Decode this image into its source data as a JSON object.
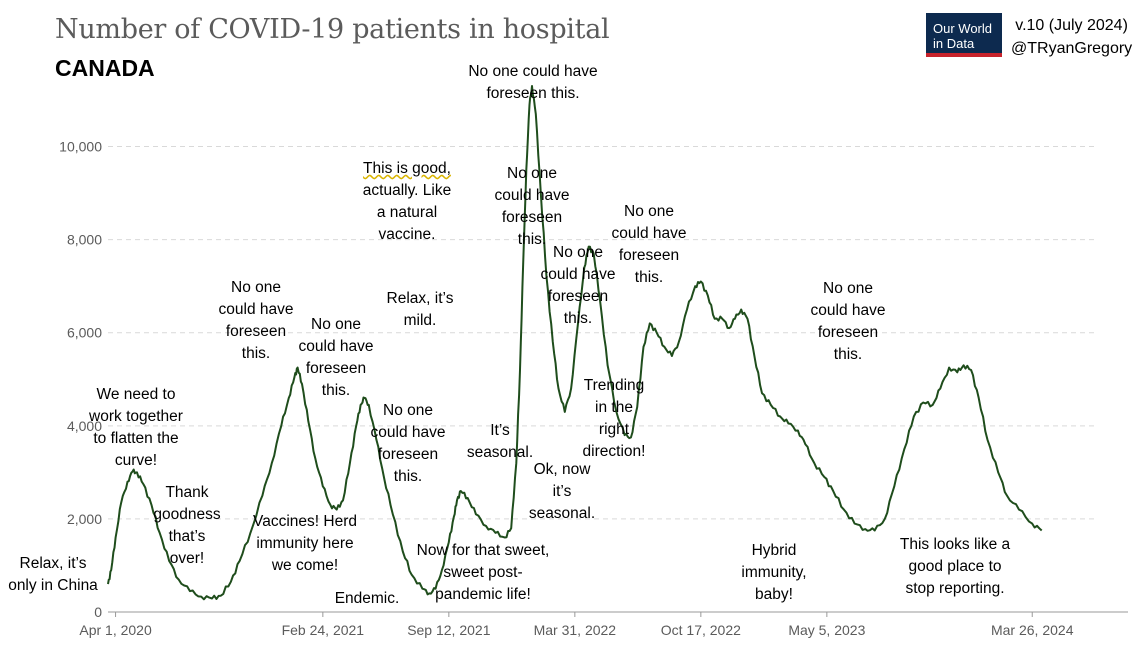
{
  "header": {
    "title": "Number of COVID-19 patients in hospital",
    "subtitle": "CANADA",
    "logo_line1": "Our World",
    "logo_line2": "in Data",
    "version": "v.10 (July 2024)",
    "author": "@TRyanGregory"
  },
  "colors": {
    "line": "#1f4d1c",
    "grid": "#d9d9d9",
    "axis_text": "#5b5b5b",
    "logo_bg": "#0d2a4f",
    "logo_accent": "#c8232c"
  },
  "chart_data": {
    "type": "line",
    "title": "Number of COVID-19 patients in hospital",
    "subtitle": "CANADA",
    "ylim": [
      0,
      11000
    ],
    "yticks": [
      0,
      2000,
      4000,
      6000,
      8000,
      10000
    ],
    "ytick_labels": [
      "0",
      "2,000",
      "4,000",
      "6,000",
      "8,000",
      "10,000"
    ],
    "xlim": [
      "2020-03-20",
      "2024-08-25"
    ],
    "xticks": [
      "2020-04-01",
      "2021-02-24",
      "2021-09-12",
      "2022-03-31",
      "2022-10-17",
      "2023-05-05",
      "2024-03-26"
    ],
    "xtick_labels": [
      "Apr 1, 2020",
      "Feb 24, 2021",
      "Sep 12, 2021",
      "Mar 31, 2022",
      "Oct 17, 2022",
      "May 5, 2023",
      "Mar 26, 2024"
    ],
    "grid": "horizontal dashed",
    "series": [
      {
        "points": [
          [
            "2020-03-20",
            600
          ],
          [
            "2020-03-25",
            900
          ],
          [
            "2020-04-01",
            1600
          ],
          [
            "2020-04-10",
            2350
          ],
          [
            "2020-04-20",
            2800
          ],
          [
            "2020-04-28",
            3020
          ],
          [
            "2020-05-05",
            3000
          ],
          [
            "2020-05-15",
            2750
          ],
          [
            "2020-05-28",
            2300
          ],
          [
            "2020-06-10",
            1700
          ],
          [
            "2020-06-25",
            1100
          ],
          [
            "2020-07-10",
            700
          ],
          [
            "2020-07-28",
            450
          ],
          [
            "2020-08-15",
            330
          ],
          [
            "2020-09-01",
            290
          ],
          [
            "2020-09-15",
            350
          ],
          [
            "2020-10-01",
            650
          ],
          [
            "2020-10-15",
            1100
          ],
          [
            "2020-11-01",
            1700
          ],
          [
            "2020-11-20",
            2500
          ],
          [
            "2020-12-05",
            3200
          ],
          [
            "2020-12-20",
            4000
          ],
          [
            "2021-01-01",
            4600
          ],
          [
            "2021-01-10",
            5050
          ],
          [
            "2021-01-15",
            5250
          ],
          [
            "2021-01-22",
            4900
          ],
          [
            "2021-02-01",
            4100
          ],
          [
            "2021-02-12",
            3300
          ],
          [
            "2021-02-24",
            2700
          ],
          [
            "2021-03-08",
            2300
          ],
          [
            "2021-03-18",
            2200
          ],
          [
            "2021-03-28",
            2400
          ],
          [
            "2021-04-08",
            3200
          ],
          [
            "2021-04-18",
            4000
          ],
          [
            "2021-04-25",
            4450
          ],
          [
            "2021-05-01",
            4600
          ],
          [
            "2021-05-08",
            4450
          ],
          [
            "2021-05-20",
            3700
          ],
          [
            "2021-06-01",
            2900
          ],
          [
            "2021-06-15",
            2100
          ],
          [
            "2021-07-01",
            1300
          ],
          [
            "2021-07-15",
            800
          ],
          [
            "2021-08-01",
            500
          ],
          [
            "2021-08-12",
            400
          ],
          [
            "2021-08-22",
            500
          ],
          [
            "2021-09-01",
            900
          ],
          [
            "2021-09-12",
            1500
          ],
          [
            "2021-09-20",
            2050
          ],
          [
            "2021-09-25",
            2400
          ],
          [
            "2021-10-01",
            2600
          ],
          [
            "2021-10-12",
            2450
          ],
          [
            "2021-10-25",
            2100
          ],
          [
            "2021-11-10",
            1850
          ],
          [
            "2021-11-25",
            1700
          ],
          [
            "2021-12-10",
            1600
          ],
          [
            "2021-12-20",
            1800
          ],
          [
            "2021-12-28",
            3200
          ],
          [
            "2022-01-03",
            5200
          ],
          [
            "2022-01-08",
            7500
          ],
          [
            "2022-01-13",
            9500
          ],
          [
            "2022-01-18",
            10900
          ],
          [
            "2022-01-22",
            11300
          ],
          [
            "2022-01-28",
            10700
          ],
          [
            "2022-02-05",
            9000
          ],
          [
            "2022-02-14",
            7200
          ],
          [
            "2022-02-24",
            5800
          ],
          [
            "2022-03-05",
            4800
          ],
          [
            "2022-03-15",
            4300
          ],
          [
            "2022-03-25",
            4800
          ],
          [
            "2022-04-05",
            6200
          ],
          [
            "2022-04-15",
            7400
          ],
          [
            "2022-04-22",
            7850
          ],
          [
            "2022-04-30",
            7700
          ],
          [
            "2022-05-10",
            6700
          ],
          [
            "2022-05-22",
            5300
          ],
          [
            "2022-06-05",
            4300
          ],
          [
            "2022-06-18",
            3800
          ],
          [
            "2022-06-28",
            3750
          ],
          [
            "2022-07-08",
            4400
          ],
          [
            "2022-07-18",
            5700
          ],
          [
            "2022-07-28",
            6200
          ],
          [
            "2022-08-08",
            6000
          ],
          [
            "2022-08-20",
            5700
          ],
          [
            "2022-09-01",
            5500
          ],
          [
            "2022-09-12",
            5800
          ],
          [
            "2022-09-25",
            6500
          ],
          [
            "2022-10-08",
            7000
          ],
          [
            "2022-10-17",
            7100
          ],
          [
            "2022-10-28",
            6800
          ],
          [
            "2022-11-08",
            6300
          ],
          [
            "2022-11-20",
            6300
          ],
          [
            "2022-12-01",
            6100
          ],
          [
            "2022-12-10",
            6300
          ],
          [
            "2022-12-20",
            6500
          ],
          [
            "2022-12-30",
            6300
          ],
          [
            "2023-01-10",
            5500
          ],
          [
            "2023-01-22",
            4700
          ],
          [
            "2023-02-05",
            4450
          ],
          [
            "2023-02-20",
            4200
          ],
          [
            "2023-03-05",
            4050
          ],
          [
            "2023-03-20",
            3900
          ],
          [
            "2023-04-01",
            3600
          ],
          [
            "2023-04-15",
            3200
          ],
          [
            "2023-05-01",
            2900
          ],
          [
            "2023-05-15",
            2600
          ],
          [
            "2023-06-01",
            2200
          ],
          [
            "2023-06-18",
            1900
          ],
          [
            "2023-07-05",
            1780
          ],
          [
            "2023-07-20",
            1750
          ],
          [
            "2023-08-05",
            2000
          ],
          [
            "2023-08-20",
            2700
          ],
          [
            "2023-09-05",
            3500
          ],
          [
            "2023-09-20",
            4200
          ],
          [
            "2023-10-05",
            4500
          ],
          [
            "2023-10-20",
            4450
          ],
          [
            "2023-11-01",
            4800
          ],
          [
            "2023-11-15",
            5250
          ],
          [
            "2023-11-28",
            5150
          ],
          [
            "2023-12-08",
            5300
          ],
          [
            "2023-12-20",
            5200
          ],
          [
            "2024-01-01",
            4600
          ],
          [
            "2024-01-15",
            3700
          ],
          [
            "2024-02-01",
            3000
          ],
          [
            "2024-02-15",
            2500
          ],
          [
            "2024-03-05",
            2200
          ],
          [
            "2024-03-26",
            1900
          ],
          [
            "2024-04-10",
            1750
          ]
        ]
      }
    ]
  },
  "annotations": [
    {
      "text": "Relax, it’s\nonly in China"
    },
    {
      "text": "We need to\nwork together\nto flatten the\ncurve!"
    },
    {
      "text": "Thank\ngoodness\nthat’s\nover!"
    },
    {
      "text": "No one\ncould have\nforeseen\nthis."
    },
    {
      "text": "No one\ncould have\nforeseen\nthis."
    },
    {
      "text": "Vaccines! Herd\nimmunity here\nwe come!"
    },
    {
      "text": "Endemic."
    },
    {
      "text": "No one\ncould have\nforeseen\nthis."
    },
    {
      "text": "Relax, it’s\nmild."
    },
    {
      "text": "This is good,",
      "line2": "actually. Like\na natural\nvaccine."
    },
    {
      "text": "No one could have\nforeseen this."
    },
    {
      "text": "Now for that sweet,\nsweet post-\npandemic life!"
    },
    {
      "text": "It’s\nseasonal."
    },
    {
      "text": "No one\ncould have\nforeseen\nthis."
    },
    {
      "text": "No one\ncould have\nforeseen\nthis."
    },
    {
      "text": "Ok, now\nit’s\nseasonal."
    },
    {
      "text": "Trending\nin the\nright\ndirection!"
    },
    {
      "text": "No one\ncould have\nforeseen\nthis."
    },
    {
      "text": "Hybrid\nimmunity,\nbaby!"
    },
    {
      "text": "No one\ncould have\nforeseen\nthis."
    },
    {
      "text": "This looks like a\ngood place to\nstop reporting."
    }
  ]
}
